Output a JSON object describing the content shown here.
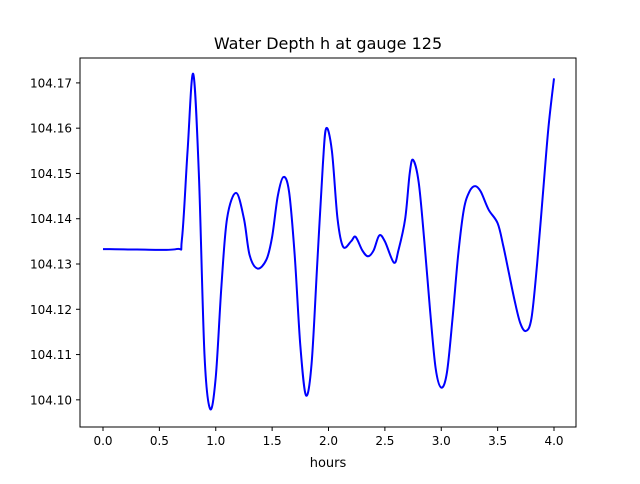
{
  "chart_data": {
    "type": "line",
    "title": "Water Depth h at gauge 125",
    "xlabel": "hours",
    "ylabel": "",
    "xlim": [
      -0.204,
      4.195
    ],
    "ylim": [
      104.094,
      104.1755
    ],
    "xticks": [
      0.0,
      0.5,
      1.0,
      1.5,
      2.0,
      2.5,
      3.0,
      3.5,
      4.0
    ],
    "xtick_labels": [
      "0.0",
      "0.5",
      "1.0",
      "1.5",
      "2.0",
      "2.5",
      "3.0",
      "3.5",
      "4.0"
    ],
    "yticks": [
      104.1,
      104.11,
      104.12,
      104.13,
      104.14,
      104.15,
      104.16,
      104.17
    ],
    "ytick_labels": [
      "104.10",
      "104.11",
      "104.12",
      "104.13",
      "104.14",
      "104.15",
      "104.16",
      "104.17"
    ],
    "grid": false,
    "series": [
      {
        "name": "h",
        "color": "#0000ff",
        "x": [
          0,
          0.3,
          0.65,
          0.7,
          0.75,
          0.8,
          0.85,
          0.9,
          0.95,
          1.0,
          1.05,
          1.1,
          1.18,
          1.25,
          1.3,
          1.37,
          1.45,
          1.5,
          1.55,
          1.6,
          1.65,
          1.7,
          1.75,
          1.8,
          1.85,
          1.9,
          1.95,
          1.98,
          2.03,
          2.08,
          2.13,
          2.2,
          2.24,
          2.3,
          2.35,
          2.4,
          2.45,
          2.5,
          2.58,
          2.62,
          2.68,
          2.72,
          2.75,
          2.8,
          2.85,
          2.9,
          2.95,
          3.0,
          3.05,
          3.1,
          3.15,
          3.2,
          3.25,
          3.3,
          3.35,
          3.42,
          3.5,
          3.55,
          3.6,
          3.65,
          3.7,
          3.75,
          3.8,
          3.85,
          3.9,
          3.95,
          4.0
        ],
        "y": [
          104.1333,
          104.1332,
          104.1333,
          104.1355,
          104.155,
          104.172,
          104.15,
          104.11,
          104.098,
          104.105,
          104.125,
          104.14,
          104.1457,
          104.14,
          104.132,
          104.129,
          104.131,
          104.136,
          104.145,
          104.1492,
          104.146,
          104.132,
          104.112,
          104.101,
          104.108,
          104.13,
          104.152,
          104.16,
          104.155,
          104.14,
          104.1338,
          104.135,
          104.136,
          104.133,
          104.1317,
          104.133,
          104.1363,
          104.135,
          104.1303,
          104.133,
          104.14,
          104.15,
          104.153,
          104.148,
          104.135,
          104.12,
          104.107,
          104.1027,
          104.106,
          104.118,
          104.132,
          104.142,
          104.146,
          104.1472,
          104.146,
          104.142,
          104.139,
          104.134,
          104.128,
          104.122,
          104.117,
          104.1152,
          104.118,
          104.13,
          104.145,
          104.16,
          104.171
        ]
      }
    ]
  }
}
